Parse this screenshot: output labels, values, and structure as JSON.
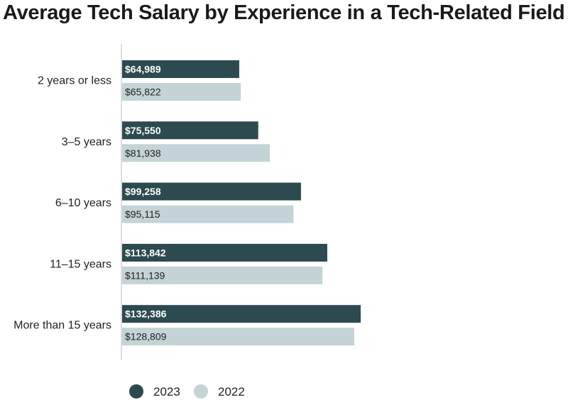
{
  "chart_data": {
    "type": "bar",
    "orientation": "horizontal",
    "title": "Average Tech Salary by Experience in a Tech-Related Field",
    "categories": [
      "2 years or less",
      "3–5 years",
      "6–10 years",
      "11–15 years",
      "More than 15 years"
    ],
    "series": [
      {
        "name": "2023",
        "color": "#2c4a4f",
        "values": [
          64989,
          75550,
          99258,
          113842,
          132386
        ],
        "labels": [
          "$64,989",
          "$75,550",
          "$99,258",
          "$113,842",
          "$132,386"
        ]
      },
      {
        "name": "2022",
        "color": "#c4d3d6",
        "values": [
          65822,
          81938,
          95115,
          111139,
          128809
        ],
        "labels": [
          "$65,822",
          "$81,938",
          "$95,115",
          "$111,139",
          "$128,809"
        ]
      }
    ],
    "xlim": [
      0,
      250000
    ],
    "grid": false,
    "legend": "bottom"
  }
}
